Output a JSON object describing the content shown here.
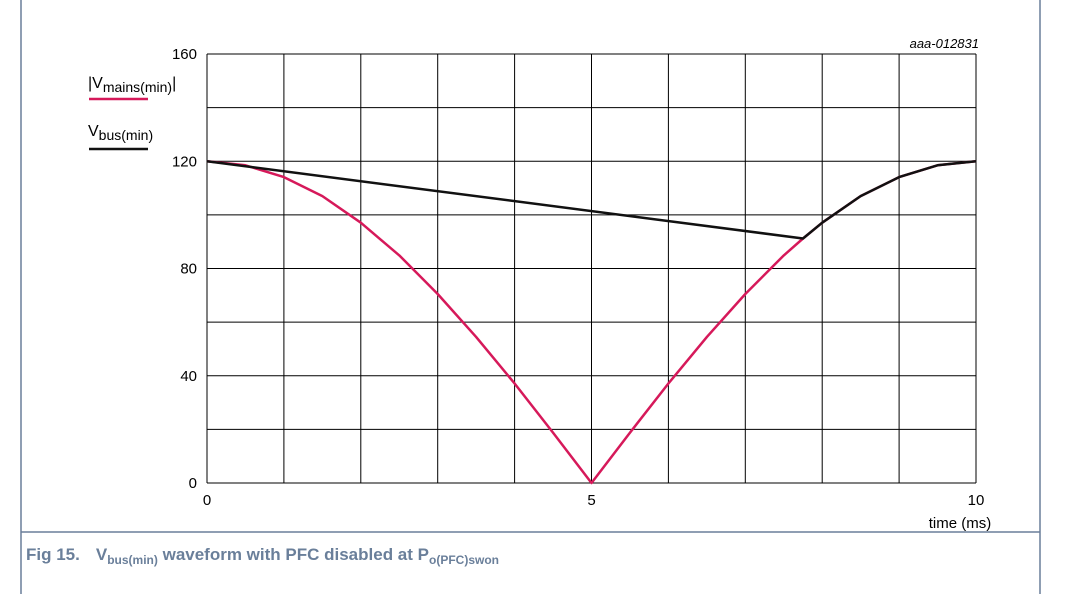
{
  "figure_id": "aaa-012831",
  "caption": {
    "prefix": "Fig 15.",
    "sym1_main": "V",
    "sym1_sub": "bus(min)",
    "middle": " waveform with PFC disabled at ",
    "sym2_main": "P",
    "sym2_sub": "o(PFC)swon"
  },
  "legend": [
    {
      "main": "|V",
      "sub": "mains(min)",
      "end": "|",
      "color": "#d6195a"
    },
    {
      "main": "V",
      "sub": "bus(min)",
      "end": "",
      "color": "#111111"
    }
  ],
  "colors": {
    "mains": "#d6195a",
    "bus": "#111111",
    "frame": "#6a7f9a",
    "grid": "#000000"
  },
  "chart_data": {
    "type": "line",
    "xlabel": "time (ms)",
    "ylabel": "",
    "xlim": [
      0,
      10
    ],
    "ylim": [
      0,
      160
    ],
    "x_ticks": [
      0,
      5,
      10
    ],
    "y_ticks": [
      0,
      40,
      80,
      120,
      160
    ],
    "x_grid_step": 1,
    "y_grid_step": 20,
    "grid": true,
    "legend_position": "top-left",
    "series": [
      {
        "name": "|Vmains(min)|",
        "color": "#d6195a",
        "x": [
          0,
          0.5,
          1,
          1.5,
          2,
          2.5,
          3,
          3.5,
          4,
          4.5,
          5,
          5.5,
          6,
          6.5,
          7,
          7.5,
          7.75,
          8,
          8.5,
          9,
          9.5,
          10
        ],
        "y": [
          120,
          118.5,
          114.1,
          107,
          97.1,
          84.9,
          70.5,
          54.5,
          37.1,
          18.8,
          0,
          18.8,
          37.1,
          54.5,
          70.5,
          84.9,
          91.2,
          97.1,
          107,
          114.1,
          118.5,
          120
        ]
      },
      {
        "name": "Vbus(min)",
        "color": "#111111",
        "x": [
          0,
          7.75,
          8,
          8.5,
          9,
          9.5,
          10
        ],
        "y": [
          120,
          91.2,
          97.1,
          107,
          114.1,
          118.5,
          120
        ]
      }
    ]
  }
}
